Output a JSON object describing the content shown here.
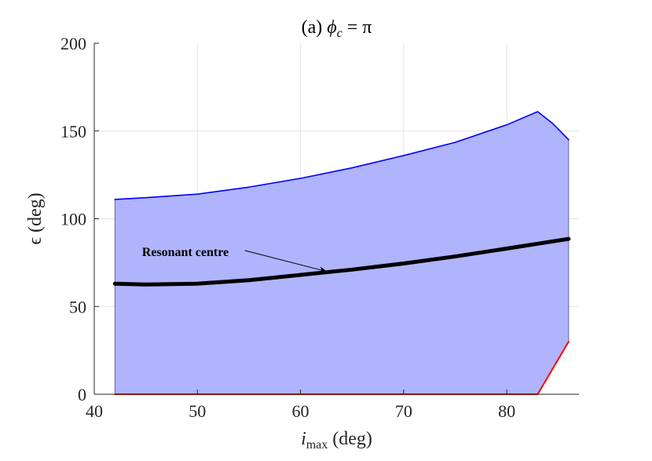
{
  "chart_data": {
    "type": "area",
    "title": "(a) ϕc = π",
    "title_parts": {
      "prefix": "(a) ",
      "symbol": "ϕ",
      "subscript": "c",
      "suffix": " = π"
    },
    "xlabel": "imax (deg)",
    "xlabel_parts": {
      "symbol": "i",
      "subscript": "max",
      "suffix": " (deg)"
    },
    "ylabel": "ϵ (deg)",
    "xlim": [
      40,
      87
    ],
    "ylim": [
      0,
      200
    ],
    "xticks": [
      40,
      50,
      60,
      70,
      80
    ],
    "yticks": [
      0,
      50,
      100,
      150,
      200
    ],
    "xtick_labels": [
      "40",
      "50",
      "60",
      "70",
      "80"
    ],
    "ytick_labels": [
      "0",
      "50",
      "100",
      "150",
      "200"
    ],
    "grid": true,
    "fill_color": "#b0b4fc",
    "series": [
      {
        "color": "#0000ff",
        "x": [
          42,
          45,
          50,
          55,
          60,
          65,
          70,
          75,
          80,
          83,
          84.5,
          86
        ],
        "y": [
          111,
          112,
          114,
          118,
          123,
          129,
          136,
          143.5,
          153.5,
          161,
          154,
          145
        ]
      },
      {
        "color": "#000000",
        "x": [
          42,
          45,
          50,
          55,
          60,
          65,
          70,
          75,
          80,
          86
        ],
        "y": [
          63,
          62.5,
          63,
          65,
          68,
          71,
          74.5,
          78.5,
          83,
          88.5
        ]
      },
      {
        "color": "#ff0000",
        "x": [
          42,
          50,
          60,
          70,
          80,
          83,
          86
        ],
        "y": [
          0,
          0,
          0,
          0,
          0,
          0,
          30
        ]
      }
    ],
    "annotations": [
      {
        "text": "Resonant centre",
        "arrow_to": {
          "x": 62.5,
          "y": 70
        },
        "text_at": {
          "x": 46,
          "y": 81
        }
      }
    ]
  }
}
